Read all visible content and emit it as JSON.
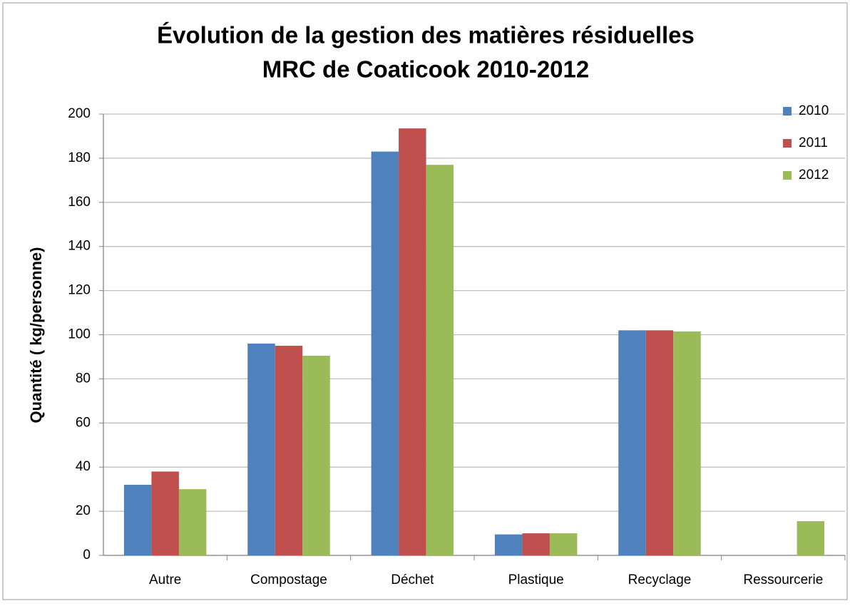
{
  "chart_data": {
    "type": "bar",
    "title": [
      "Évolution de la gestion des matières résiduelles",
      "MRC de Coaticook  2010-2012"
    ],
    "y_label": "Quantité ( kg/personne)",
    "categories": [
      "Autre",
      "Compostage",
      "Déchet",
      "Plastique",
      "Recyclage",
      "Ressourcerie"
    ],
    "series": [
      {
        "name": "2010",
        "color": "#4f81bd",
        "values": [
          32,
          96,
          183,
          9.5,
          102,
          null
        ]
      },
      {
        "name": "2011",
        "color": "#c0504d",
        "values": [
          38,
          95,
          193.5,
          10,
          102,
          null
        ]
      },
      {
        "name": "2012",
        "color": "#9bbb59",
        "values": [
          30,
          90.5,
          177,
          10,
          101.5,
          15.5
        ]
      }
    ],
    "ylim": [
      0,
      200
    ],
    "yticks": [
      0,
      20,
      40,
      60,
      80,
      100,
      120,
      140,
      160,
      180,
      200
    ],
    "grid": true,
    "legend": "top-right"
  }
}
